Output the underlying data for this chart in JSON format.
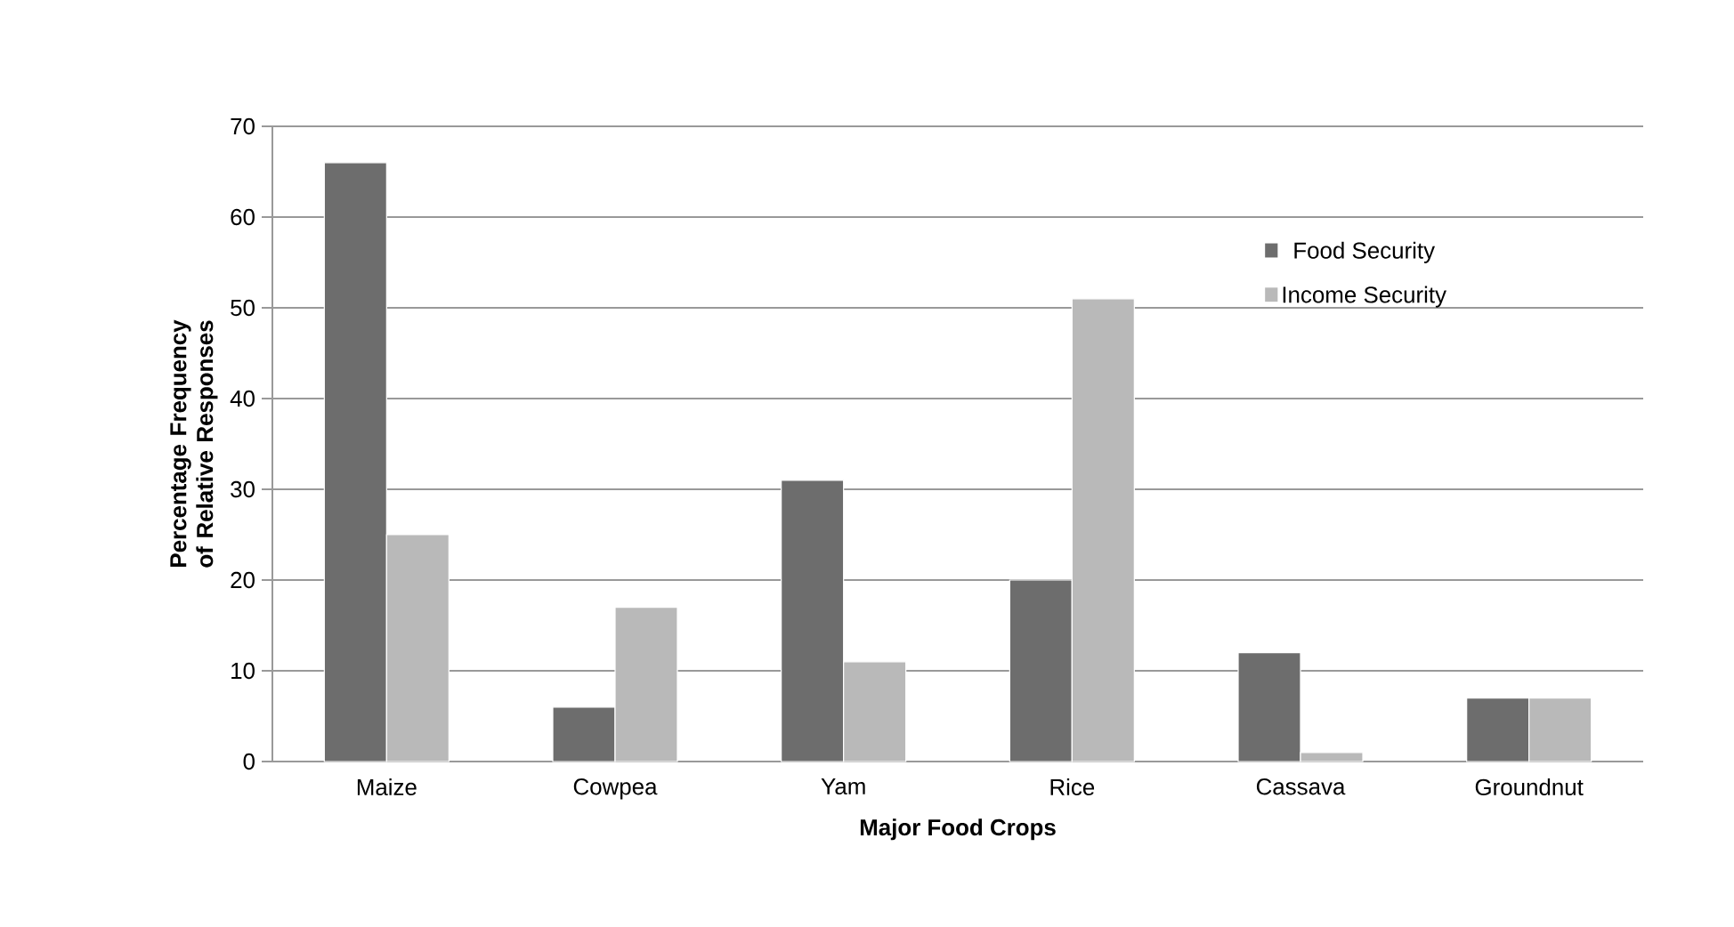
{
  "chart_data": {
    "type": "bar",
    "xlabel": "Major Food Crops",
    "ylabel": "Percentage Frequency of Relative Responses",
    "categories": [
      "Maize",
      "Cowpea",
      "Yam",
      "Rice",
      "Cassava",
      "Groundnut"
    ],
    "series": [
      {
        "name": "Food Security",
        "color": "#6d6d6d",
        "values": [
          66,
          6,
          31,
          20,
          12,
          7
        ]
      },
      {
        "name": "Income Security",
        "color": "#b9b9b9",
        "values": [
          25,
          17,
          11,
          51,
          1,
          7
        ]
      }
    ],
    "ylim": [
      0,
      70
    ],
    "yticks": [
      0,
      10,
      20,
      30,
      40,
      50,
      60,
      70
    ],
    "grid": "y",
    "legend": "top right"
  }
}
